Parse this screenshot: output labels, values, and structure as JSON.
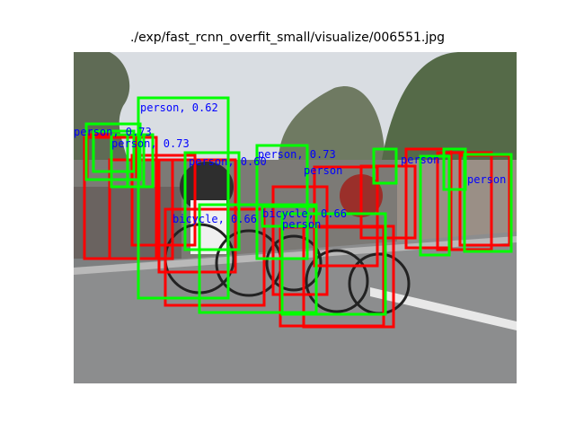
{
  "figure": {
    "title": "./exp/fast_rcnn_overfit_small/visualize/006551.jpg"
  },
  "colors": {
    "ground_truth_box": "#ff0000",
    "prediction_box": "#00ff00",
    "label_text": "#0000ff"
  },
  "detections": [
    {
      "label": "person, 0.62"
    },
    {
      "label": "person, 0.73"
    },
    {
      "label": "person, 0.73"
    },
    {
      "label": "person, 0.73"
    },
    {
      "label": "person, 0.60"
    },
    {
      "label": "bicycle, 0.66"
    },
    {
      "label": "bicycle, 0.66"
    },
    {
      "label": "person"
    },
    {
      "label": "person"
    },
    {
      "label": "person"
    },
    {
      "label": "person"
    }
  ]
}
